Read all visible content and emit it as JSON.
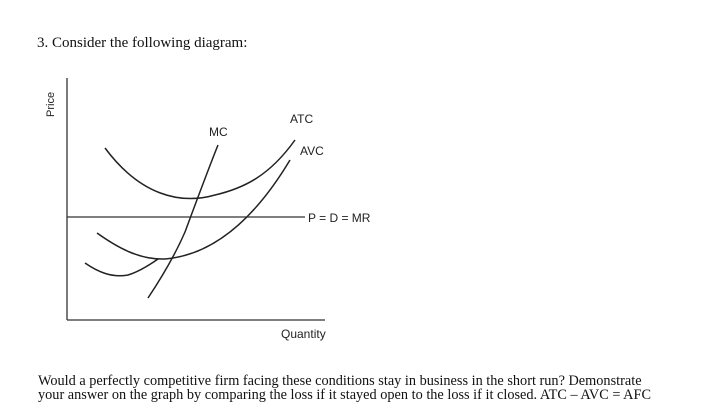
{
  "question": {
    "heading": "3. Consider the following diagram:"
  },
  "diagram": {
    "y_axis_label": "Price",
    "x_axis_label": "Quantity",
    "curves": {
      "mc": "MC",
      "atc": "ATC",
      "avc": "AVC",
      "price_line": "P = D = MR"
    }
  },
  "footer": {
    "line1": "Would a perfectly competitive firm facing these conditions stay in business in the short run? Demonstrate",
    "line2": "your answer on the graph by comparing the loss if it stayed open to the loss if it closed. ATC – AVC = AFC"
  }
}
